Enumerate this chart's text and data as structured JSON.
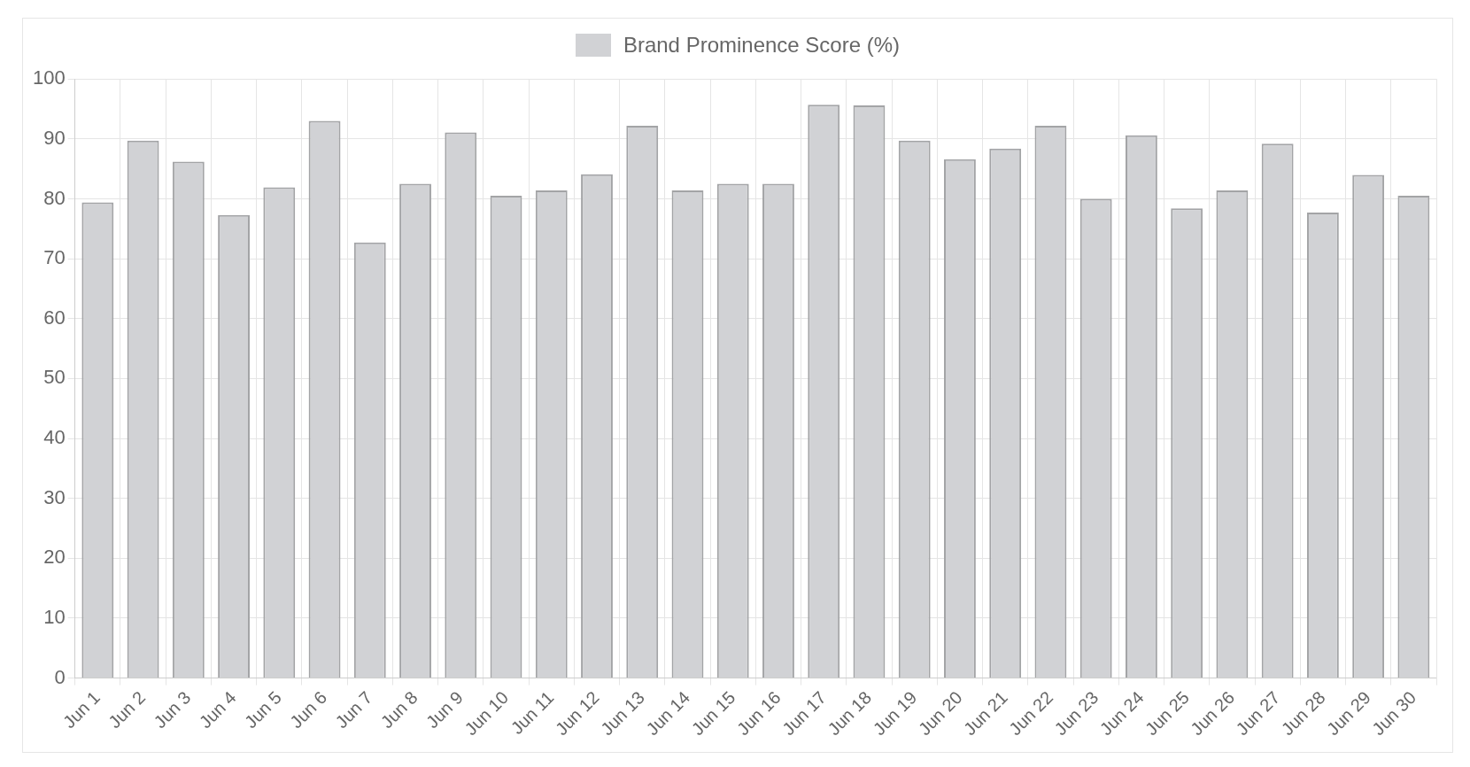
{
  "chart_data": {
    "type": "bar",
    "categories": [
      "Jun 1",
      "Jun 2",
      "Jun 3",
      "Jun 4",
      "Jun 5",
      "Jun 6",
      "Jun 7",
      "Jun 8",
      "Jun 9",
      "Jun 10",
      "Jun 11",
      "Jun 12",
      "Jun 13",
      "Jun 14",
      "Jun 15",
      "Jun 16",
      "Jun 17",
      "Jun 18",
      "Jun 19",
      "Jun 20",
      "Jun 21",
      "Jun 22",
      "Jun 23",
      "Jun 24",
      "Jun 25",
      "Jun 26",
      "Jun 27",
      "Jun 28",
      "Jun 29",
      "Jun 30"
    ],
    "series": [
      {
        "name": "Brand Prominence Score (%)",
        "color": "#d1d2d5",
        "values": [
          79.4,
          89.7,
          86.2,
          77.3,
          81.9,
          93,
          72.7,
          82.5,
          91.1,
          80.5,
          81.4,
          84.1,
          92.2,
          81.4,
          82.5,
          82.5,
          95.7,
          95.6,
          89.7,
          86.6,
          88.4,
          92.2,
          80,
          90.6,
          78.4,
          81.4,
          89.2,
          77.7,
          84,
          80.5
        ]
      }
    ],
    "ylim": [
      0,
      100
    ],
    "yticks": [
      0,
      10,
      20,
      30,
      40,
      50,
      60,
      70,
      80,
      90,
      100
    ],
    "grid": true,
    "legend": "top"
  }
}
